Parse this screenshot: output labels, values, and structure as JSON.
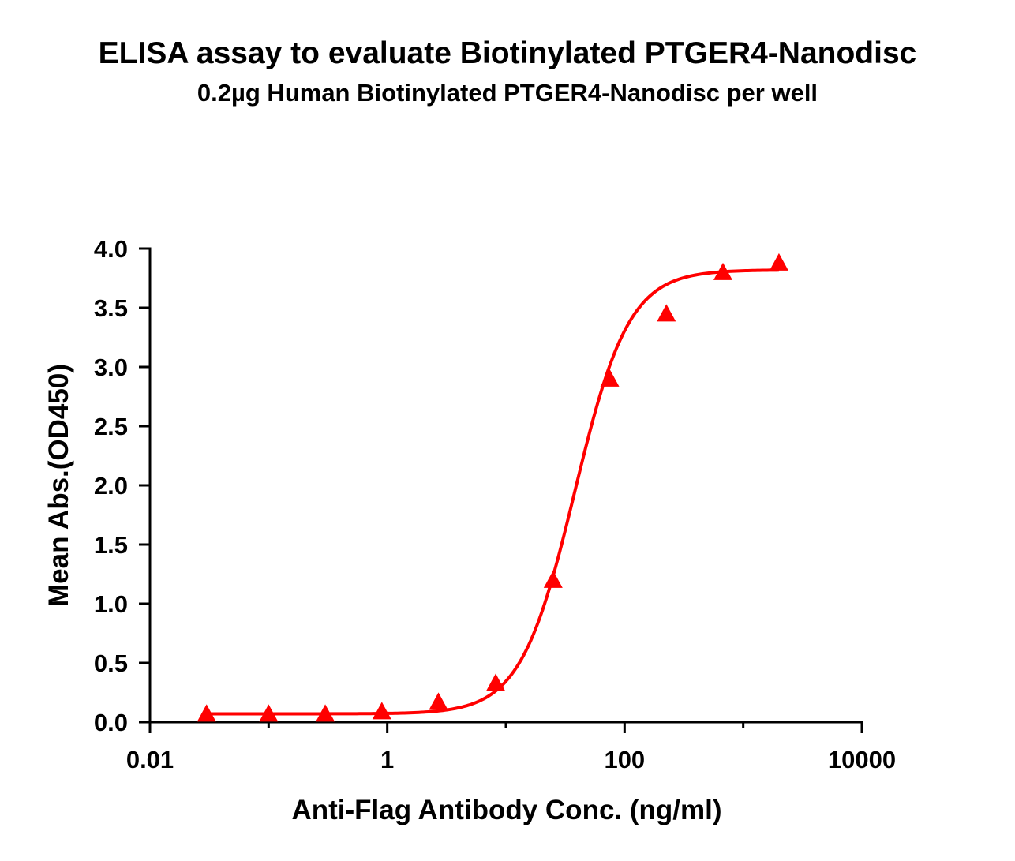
{
  "chart_data": {
    "type": "scatter",
    "title": "ELISA assay to evaluate Biotinylated PTGER4-Nanodisc",
    "subtitle": "0.2µg Human Biotinylated PTGER4-Nanodisc per well",
    "xlabel": "Anti-Flag Antibody Conc. (ng/ml)",
    "ylabel": "Mean Abs.(OD450)",
    "x_scale": "log10",
    "xlim": [
      0.01,
      10000
    ],
    "ylim": [
      0.0,
      4.0
    ],
    "x_ticks": [
      0.01,
      1,
      100,
      10000
    ],
    "x_tick_labels": [
      "0.01",
      "1",
      "100",
      "10000"
    ],
    "y_ticks": [
      0.0,
      0.5,
      1.0,
      1.5,
      2.0,
      2.5,
      3.0,
      3.5,
      4.0
    ],
    "y_tick_labels": [
      "0.0",
      "0.5",
      "1.0",
      "1.5",
      "2.0",
      "2.5",
      "3.0",
      "3.5",
      "4.0"
    ],
    "grid": false,
    "series": [
      {
        "marker": "triangle",
        "color": "#ff0000",
        "x": [
          0.03,
          0.1,
          0.3,
          0.9,
          2.7,
          8.2,
          25,
          75,
          225,
          675,
          2000
        ],
        "y": [
          0.06,
          0.06,
          0.06,
          0.08,
          0.16,
          0.32,
          1.19,
          2.89,
          3.44,
          3.79,
          3.87
        ]
      }
    ],
    "fit_curve": {
      "model": "4PL",
      "color": "#ff0000",
      "bottom": 0.07,
      "top": 3.82,
      "ec50": 38,
      "hill": 1.9
    }
  }
}
